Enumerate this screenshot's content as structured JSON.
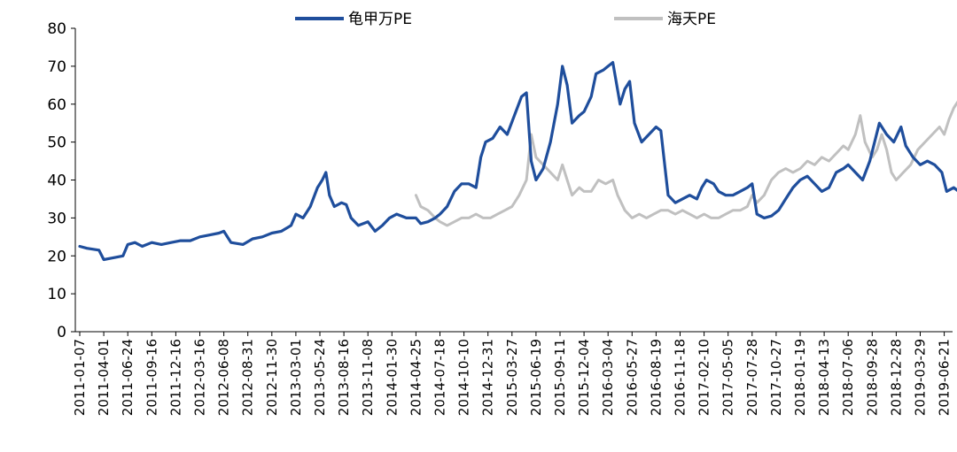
{
  "chart_data": {
    "type": "line",
    "title": "",
    "xlabel": "",
    "ylabel": "",
    "ylim": [
      0,
      80
    ],
    "yticks": [
      0,
      10,
      20,
      30,
      40,
      50,
      60,
      70,
      80
    ],
    "grid": false,
    "legend_position": "top",
    "x_tick_labels": [
      "2011-01-07",
      "2011-04-01",
      "2011-06-24",
      "2011-09-16",
      "2011-12-16",
      "2012-03-16",
      "2012-06-08",
      "2012-08-31",
      "2012-11-30",
      "2013-03-01",
      "2013-05-24",
      "2013-08-16",
      "2013-11-08",
      "2014-01-30",
      "2014-04-25",
      "2014-07-18",
      "2014-10-10",
      "2014-12-31",
      "2015-03-27",
      "2015-06-19",
      "2015-09-11",
      "2015-12-04",
      "2016-03-04",
      "2016-05-27",
      "2016-08-19",
      "2016-11-18",
      "2017-02-10",
      "2017-05-05",
      "2017-07-28",
      "2017-10-27",
      "2018-01-19",
      "2018-04-13",
      "2018-07-06",
      "2018-09-28",
      "2018-12-28",
      "2019-03-29",
      "2019-06-21"
    ],
    "series": [
      {
        "name": "龟甲万PE",
        "color": "#1f4e9c",
        "points": [
          [
            0,
            22.5
          ],
          [
            0.3,
            22
          ],
          [
            0.8,
            21.5
          ],
          [
            1.0,
            19
          ],
          [
            1.4,
            19.5
          ],
          [
            1.8,
            20
          ],
          [
            2.0,
            23
          ],
          [
            2.3,
            23.5
          ],
          [
            2.6,
            22.5
          ],
          [
            3.0,
            23.5
          ],
          [
            3.4,
            23
          ],
          [
            3.8,
            23.5
          ],
          [
            4.2,
            24
          ],
          [
            4.6,
            24
          ],
          [
            5.0,
            25
          ],
          [
            5.4,
            25.5
          ],
          [
            5.8,
            26
          ],
          [
            6.0,
            26.5
          ],
          [
            6.3,
            23.5
          ],
          [
            6.8,
            23
          ],
          [
            7.2,
            24.5
          ],
          [
            7.6,
            25
          ],
          [
            8.0,
            26
          ],
          [
            8.4,
            26.5
          ],
          [
            8.8,
            28
          ],
          [
            9.0,
            31
          ],
          [
            9.3,
            30
          ],
          [
            9.6,
            33
          ],
          [
            9.9,
            38
          ],
          [
            10.1,
            40
          ],
          [
            10.25,
            42
          ],
          [
            10.4,
            36
          ],
          [
            10.6,
            33
          ],
          [
            10.9,
            34
          ],
          [
            11.1,
            33.5
          ],
          [
            11.3,
            30
          ],
          [
            11.6,
            28
          ],
          [
            12.0,
            29
          ],
          [
            12.3,
            26.5
          ],
          [
            12.6,
            28
          ],
          [
            12.9,
            30
          ],
          [
            13.2,
            31
          ],
          [
            13.6,
            30
          ],
          [
            14.0,
            30
          ],
          [
            14.2,
            28.5
          ],
          [
            14.5,
            29
          ],
          [
            14.8,
            30
          ],
          [
            15.0,
            31
          ],
          [
            15.3,
            33
          ],
          [
            15.6,
            37
          ],
          [
            15.9,
            39
          ],
          [
            16.2,
            39
          ],
          [
            16.5,
            38
          ],
          [
            16.7,
            46
          ],
          [
            16.9,
            50
          ],
          [
            17.2,
            51
          ],
          [
            17.5,
            54
          ],
          [
            17.8,
            52
          ],
          [
            18.1,
            57
          ],
          [
            18.4,
            62
          ],
          [
            18.6,
            63
          ],
          [
            18.8,
            45
          ],
          [
            19.0,
            40
          ],
          [
            19.3,
            43
          ],
          [
            19.6,
            50
          ],
          [
            19.9,
            60
          ],
          [
            20.1,
            70
          ],
          [
            20.3,
            65
          ],
          [
            20.5,
            55
          ],
          [
            20.8,
            57
          ],
          [
            21.0,
            58
          ],
          [
            21.3,
            62
          ],
          [
            21.5,
            68
          ],
          [
            21.8,
            69
          ],
          [
            22.0,
            70
          ],
          [
            22.2,
            71
          ],
          [
            22.5,
            60
          ],
          [
            22.7,
            64
          ],
          [
            22.9,
            66
          ],
          [
            23.1,
            55
          ],
          [
            23.4,
            50
          ],
          [
            23.7,
            52
          ],
          [
            24.0,
            54
          ],
          [
            24.2,
            53
          ],
          [
            24.5,
            36
          ],
          [
            24.8,
            34
          ],
          [
            25.1,
            35
          ],
          [
            25.4,
            36
          ],
          [
            25.7,
            35
          ],
          [
            25.9,
            38
          ],
          [
            26.1,
            40
          ],
          [
            26.4,
            39
          ],
          [
            26.6,
            37
          ],
          [
            26.9,
            36
          ],
          [
            27.2,
            36
          ],
          [
            27.5,
            37
          ],
          [
            27.8,
            38
          ],
          [
            28.0,
            39
          ],
          [
            28.2,
            31
          ],
          [
            28.5,
            30
          ],
          [
            28.8,
            30.5
          ],
          [
            29.1,
            32
          ],
          [
            29.4,
            35
          ],
          [
            29.7,
            38
          ],
          [
            30.0,
            40
          ],
          [
            30.3,
            41
          ],
          [
            30.6,
            39
          ],
          [
            30.9,
            37
          ],
          [
            31.2,
            38
          ],
          [
            31.5,
            42
          ],
          [
            31.8,
            43
          ],
          [
            32.0,
            44
          ],
          [
            32.3,
            42
          ],
          [
            32.6,
            40
          ],
          [
            32.9,
            45
          ],
          [
            33.1,
            50
          ],
          [
            33.3,
            55
          ],
          [
            33.6,
            52
          ],
          [
            33.9,
            50
          ],
          [
            34.2,
            54
          ],
          [
            34.4,
            49
          ],
          [
            34.7,
            46
          ],
          [
            35.0,
            44
          ],
          [
            35.3,
            45
          ],
          [
            35.6,
            44
          ],
          [
            35.9,
            42
          ],
          [
            36.1,
            37
          ],
          [
            36.4,
            38
          ],
          [
            36.7,
            36.5
          ],
          [
            37.0,
            38.5
          ]
        ]
      },
      {
        "name": "海天PE",
        "color": "#c0c0c0",
        "points": [
          [
            14.0,
            36
          ],
          [
            14.2,
            33
          ],
          [
            14.5,
            32
          ],
          [
            14.8,
            30
          ],
          [
            15.0,
            29
          ],
          [
            15.3,
            28
          ],
          [
            15.6,
            29
          ],
          [
            15.9,
            30
          ],
          [
            16.2,
            30
          ],
          [
            16.5,
            31
          ],
          [
            16.8,
            30
          ],
          [
            17.1,
            30
          ],
          [
            17.4,
            31
          ],
          [
            17.7,
            32
          ],
          [
            18.0,
            33
          ],
          [
            18.3,
            36
          ],
          [
            18.6,
            40
          ],
          [
            18.8,
            52
          ],
          [
            19.0,
            46
          ],
          [
            19.3,
            44
          ],
          [
            19.6,
            42
          ],
          [
            19.9,
            40
          ],
          [
            20.1,
            44
          ],
          [
            20.3,
            40
          ],
          [
            20.5,
            36
          ],
          [
            20.8,
            38
          ],
          [
            21.0,
            37
          ],
          [
            21.3,
            37
          ],
          [
            21.6,
            40
          ],
          [
            21.9,
            39
          ],
          [
            22.2,
            40
          ],
          [
            22.4,
            36
          ],
          [
            22.7,
            32
          ],
          [
            23.0,
            30
          ],
          [
            23.3,
            31
          ],
          [
            23.6,
            30
          ],
          [
            23.9,
            31
          ],
          [
            24.2,
            32
          ],
          [
            24.5,
            32
          ],
          [
            24.8,
            31
          ],
          [
            25.1,
            32
          ],
          [
            25.4,
            31
          ],
          [
            25.7,
            30
          ],
          [
            26.0,
            31
          ],
          [
            26.3,
            30
          ],
          [
            26.6,
            30
          ],
          [
            26.9,
            31
          ],
          [
            27.2,
            32
          ],
          [
            27.5,
            32
          ],
          [
            27.8,
            33
          ],
          [
            28.0,
            36
          ],
          [
            28.2,
            34
          ],
          [
            28.5,
            36
          ],
          [
            28.8,
            40
          ],
          [
            29.1,
            42
          ],
          [
            29.4,
            43
          ],
          [
            29.7,
            42
          ],
          [
            30.0,
            43
          ],
          [
            30.3,
            45
          ],
          [
            30.6,
            44
          ],
          [
            30.9,
            46
          ],
          [
            31.2,
            45
          ],
          [
            31.5,
            47
          ],
          [
            31.8,
            49
          ],
          [
            32.0,
            48
          ],
          [
            32.3,
            52
          ],
          [
            32.5,
            57
          ],
          [
            32.7,
            50
          ],
          [
            33.0,
            46
          ],
          [
            33.2,
            48
          ],
          [
            33.4,
            52
          ],
          [
            33.6,
            48
          ],
          [
            33.8,
            42
          ],
          [
            34.0,
            40
          ],
          [
            34.3,
            42
          ],
          [
            34.6,
            44
          ],
          [
            34.9,
            48
          ],
          [
            35.2,
            50
          ],
          [
            35.5,
            52
          ],
          [
            35.8,
            54
          ],
          [
            36.0,
            52
          ],
          [
            36.2,
            56
          ],
          [
            36.4,
            59
          ],
          [
            36.6,
            61
          ],
          [
            36.8,
            60
          ],
          [
            37.0,
            59
          ]
        ]
      }
    ]
  }
}
